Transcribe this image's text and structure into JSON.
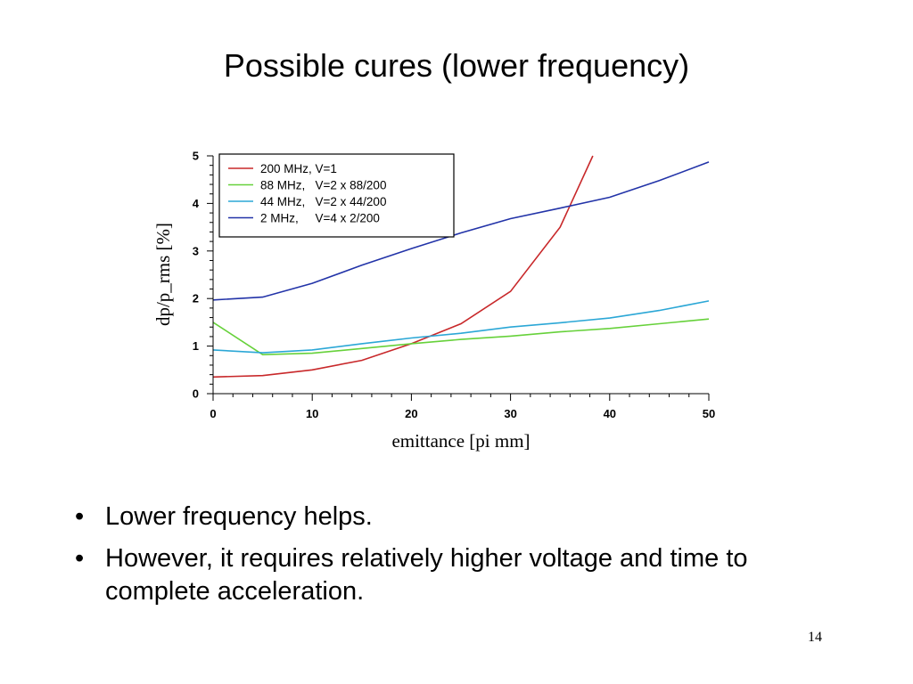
{
  "slide": {
    "title": "Possible cures (lower frequency)",
    "bullets": [
      "Lower frequency helps.",
      "However, it requires relatively higher voltage and time to complete acceleration."
    ],
    "bullet_symbol": "•",
    "page_number": "14"
  },
  "chart_data": {
    "type": "line",
    "title": "",
    "xlabel": "emittance [pi mm]",
    "ylabel": "dp/p_rms [%]",
    "xlim": [
      0,
      50
    ],
    "ylim": [
      0,
      5
    ],
    "xticks": [
      0,
      10,
      20,
      30,
      40,
      50
    ],
    "yticks": [
      0,
      1,
      2,
      3,
      4,
      5
    ],
    "grid": false,
    "legend_position": "top-left",
    "series": [
      {
        "name": "200 MHz, V=1",
        "color": "#c8282a",
        "x": [
          0,
          5,
          10,
          15,
          20,
          25,
          30,
          35,
          38.3
        ],
        "y": [
          0.35,
          0.38,
          0.5,
          0.7,
          1.05,
          1.47,
          2.15,
          3.5,
          5.0
        ]
      },
      {
        "name": "88 MHz,   V=2 x 88/200",
        "color": "#66d13a",
        "x": [
          0,
          5,
          10,
          15,
          20,
          25,
          30,
          35,
          40,
          45,
          50
        ],
        "y": [
          1.5,
          0.82,
          0.85,
          0.95,
          1.05,
          1.14,
          1.21,
          1.3,
          1.37,
          1.47,
          1.57
        ]
      },
      {
        "name": "44 MHz,   V=2 x 44/200",
        "color": "#2ba7d6",
        "x": [
          0,
          5,
          10,
          15,
          20,
          25,
          30,
          35,
          40,
          45,
          50
        ],
        "y": [
          0.92,
          0.86,
          0.92,
          1.05,
          1.17,
          1.27,
          1.4,
          1.49,
          1.59,
          1.75,
          1.95
        ]
      },
      {
        "name": "2 MHz,     V=4 x 2/200",
        "color": "#2233a8",
        "x": [
          0,
          5,
          10,
          15,
          20,
          25,
          30,
          35,
          40,
          45,
          50
        ],
        "y": [
          1.97,
          2.03,
          2.32,
          2.7,
          3.05,
          3.38,
          3.68,
          3.9,
          4.13,
          4.48,
          4.87
        ]
      }
    ]
  }
}
